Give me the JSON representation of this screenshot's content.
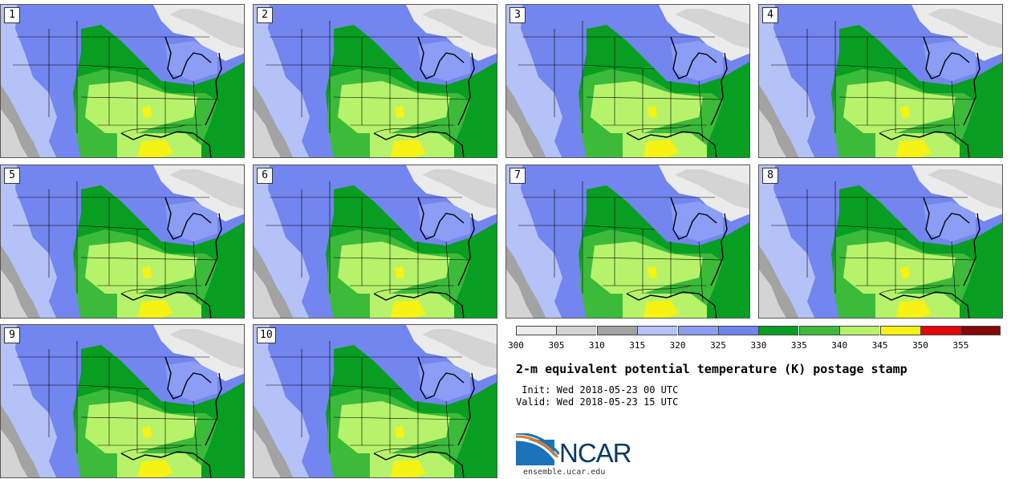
{
  "panels": [
    {
      "label": "1"
    },
    {
      "label": "2"
    },
    {
      "label": "3"
    },
    {
      "label": "4"
    },
    {
      "label": "5"
    },
    {
      "label": "6"
    },
    {
      "label": "7"
    },
    {
      "label": "8"
    },
    {
      "label": "9"
    },
    {
      "label": "10"
    }
  ],
  "colorbar": {
    "bins": [
      {
        "from": 300,
        "to": 305,
        "color": "#ebebeb"
      },
      {
        "from": 305,
        "to": 310,
        "color": "#d4d4d4"
      },
      {
        "from": 310,
        "to": 315,
        "color": "#a3a3a3"
      },
      {
        "from": 315,
        "to": 320,
        "color": "#b5c2f7"
      },
      {
        "from": 320,
        "to": 325,
        "color": "#8b9df5"
      },
      {
        "from": 325,
        "to": 330,
        "color": "#7083ef"
      },
      {
        "from": 330,
        "to": 335,
        "color": "#079e22"
      },
      {
        "from": 335,
        "to": 340,
        "color": "#3cba3a"
      },
      {
        "from": 340,
        "to": 345,
        "color": "#b7f26b"
      },
      {
        "from": 345,
        "to": 350,
        "color": "#f6f214"
      },
      {
        "from": 350,
        "to": 355,
        "color": "#e30606"
      },
      {
        "from": 355,
        "to": 360,
        "color": "#860707"
      }
    ],
    "ticks": [
      "300",
      "305",
      "310",
      "315",
      "320",
      "325",
      "330",
      "335",
      "340",
      "345",
      "350",
      "355"
    ]
  },
  "title": "2-m equivalent potential temperature (K) postage stamp",
  "init_label": " Init:",
  "init_value": "Wed 2018-05-23 00 UTC",
  "valid_label": "Valid:",
  "valid_value": "Wed 2018-05-23 15 UTC",
  "logo": {
    "text": "NCAR",
    "url_text": "ensemble.ucar.edu"
  }
}
